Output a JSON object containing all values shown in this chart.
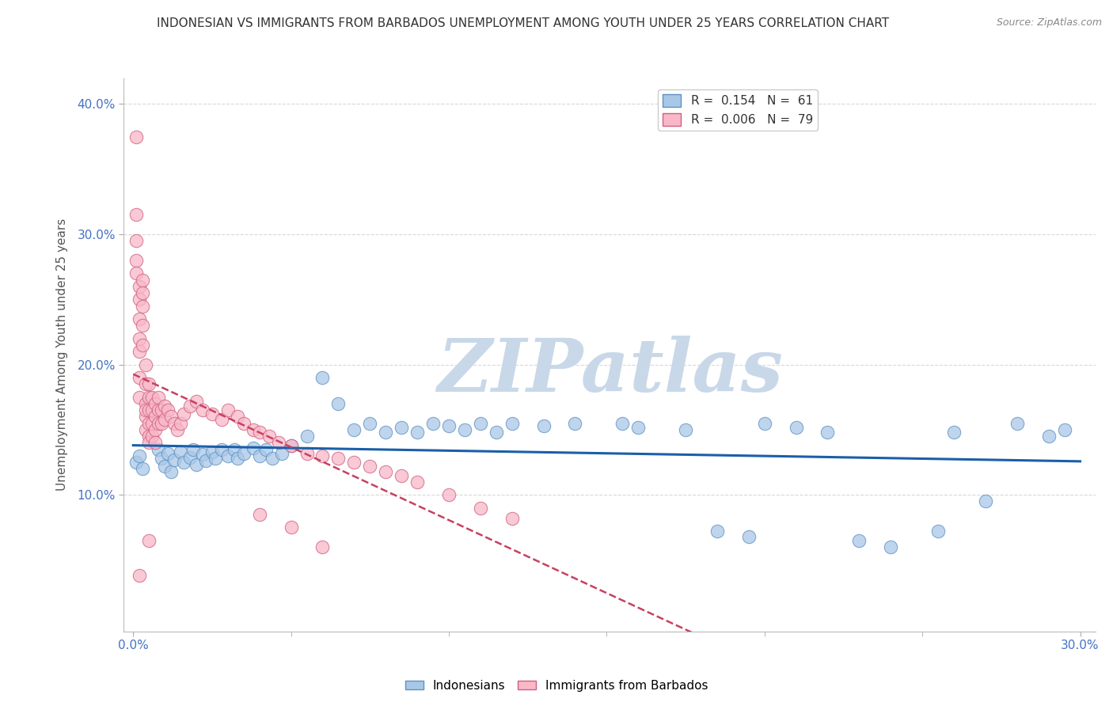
{
  "title": "INDONESIAN VS IMMIGRANTS FROM BARBADOS UNEMPLOYMENT AMONG YOUTH UNDER 25 YEARS CORRELATION CHART",
  "source": "Source: ZipAtlas.com",
  "xlabel": "",
  "ylabel": "Unemployment Among Youth under 25 years",
  "xlim": [
    -0.003,
    0.305
  ],
  "ylim": [
    -0.005,
    0.42
  ],
  "xtick_positions": [
    0.0,
    0.3
  ],
  "xtick_labels": [
    "0.0%",
    "30.0%"
  ],
  "ytick_positions": [
    0.1,
    0.2,
    0.3,
    0.4
  ],
  "ytick_labels": [
    "10.0%",
    "20.0%",
    "30.0%",
    "40.0%"
  ],
  "indonesians": {
    "color": "#a8c8e8",
    "edge_color": "#6090c0",
    "x": [
      0.001,
      0.002,
      0.003,
      0.008,
      0.009,
      0.01,
      0.011,
      0.012,
      0.013,
      0.015,
      0.016,
      0.018,
      0.019,
      0.02,
      0.022,
      0.023,
      0.025,
      0.026,
      0.028,
      0.03,
      0.032,
      0.033,
      0.035,
      0.038,
      0.04,
      0.042,
      0.044,
      0.047,
      0.05,
      0.055,
      0.06,
      0.065,
      0.07,
      0.075,
      0.08,
      0.085,
      0.09,
      0.095,
      0.1,
      0.105,
      0.11,
      0.115,
      0.12,
      0.13,
      0.14,
      0.155,
      0.16,
      0.175,
      0.185,
      0.195,
      0.2,
      0.21,
      0.22,
      0.23,
      0.24,
      0.255,
      0.26,
      0.27,
      0.28,
      0.29,
      0.295
    ],
    "y": [
      0.125,
      0.13,
      0.12,
      0.135,
      0.128,
      0.122,
      0.132,
      0.118,
      0.127,
      0.133,
      0.125,
      0.129,
      0.135,
      0.123,
      0.131,
      0.126,
      0.133,
      0.128,
      0.135,
      0.13,
      0.135,
      0.128,
      0.132,
      0.136,
      0.13,
      0.135,
      0.128,
      0.132,
      0.138,
      0.145,
      0.19,
      0.17,
      0.15,
      0.155,
      0.148,
      0.152,
      0.148,
      0.155,
      0.153,
      0.15,
      0.155,
      0.148,
      0.155,
      0.153,
      0.155,
      0.155,
      0.152,
      0.15,
      0.072,
      0.068,
      0.155,
      0.152,
      0.148,
      0.065,
      0.06,
      0.072,
      0.148,
      0.095,
      0.155,
      0.145,
      0.15
    ]
  },
  "barbados": {
    "color": "#f8b8c8",
    "edge_color": "#d06080",
    "x": [
      0.001,
      0.001,
      0.001,
      0.001,
      0.001,
      0.002,
      0.002,
      0.002,
      0.002,
      0.002,
      0.002,
      0.002,
      0.003,
      0.003,
      0.003,
      0.003,
      0.003,
      0.004,
      0.004,
      0.004,
      0.004,
      0.004,
      0.004,
      0.005,
      0.005,
      0.005,
      0.005,
      0.005,
      0.005,
      0.006,
      0.006,
      0.006,
      0.006,
      0.007,
      0.007,
      0.007,
      0.007,
      0.008,
      0.008,
      0.008,
      0.009,
      0.009,
      0.01,
      0.01,
      0.011,
      0.012,
      0.013,
      0.014,
      0.015,
      0.016,
      0.018,
      0.02,
      0.022,
      0.025,
      0.028,
      0.03,
      0.033,
      0.035,
      0.038,
      0.04,
      0.043,
      0.046,
      0.05,
      0.055,
      0.06,
      0.065,
      0.07,
      0.075,
      0.08,
      0.085,
      0.09,
      0.1,
      0.11,
      0.12,
      0.04,
      0.05,
      0.06,
      0.005,
      0.002
    ],
    "y": [
      0.375,
      0.315,
      0.295,
      0.28,
      0.27,
      0.26,
      0.25,
      0.235,
      0.22,
      0.21,
      0.19,
      0.175,
      0.265,
      0.255,
      0.245,
      0.23,
      0.215,
      0.2,
      0.185,
      0.17,
      0.16,
      0.15,
      0.165,
      0.185,
      0.175,
      0.165,
      0.155,
      0.145,
      0.14,
      0.175,
      0.165,
      0.155,
      0.145,
      0.17,
      0.16,
      0.15,
      0.14,
      0.175,
      0.165,
      0.155,
      0.165,
      0.155,
      0.168,
      0.158,
      0.165,
      0.16,
      0.155,
      0.15,
      0.155,
      0.162,
      0.168,
      0.172,
      0.165,
      0.162,
      0.158,
      0.165,
      0.16,
      0.155,
      0.15,
      0.148,
      0.145,
      0.14,
      0.138,
      0.132,
      0.13,
      0.128,
      0.125,
      0.122,
      0.118,
      0.115,
      0.11,
      0.1,
      0.09,
      0.082,
      0.085,
      0.075,
      0.06,
      0.065,
      0.038
    ]
  },
  "trend_indo_color": "#1a5fa8",
  "trend_barb_color": "#c84060",
  "watermark": "ZIPatlas",
  "watermark_color": "#c8d8e8",
  "grid_color": "#d8d8d8",
  "background_color": "#ffffff",
  "title_fontsize": 11,
  "label_fontsize": 11,
  "tick_fontsize": 11
}
